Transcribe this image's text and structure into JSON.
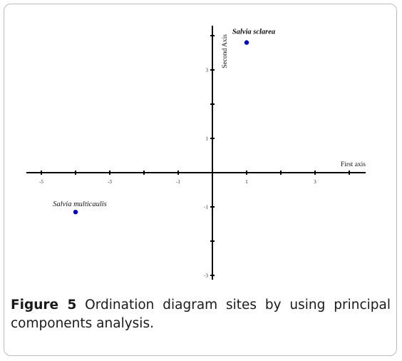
{
  "chart_data": {
    "type": "scatter",
    "title": "",
    "xlabel": "First axis",
    "ylabel": "Second Axis",
    "xlim": [
      -5.5,
      4.5
    ],
    "ylim": [
      -3,
      4.2
    ],
    "x_ticks": [
      -5,
      -4,
      -3,
      -2,
      -1,
      0,
      1,
      2,
      3,
      4
    ],
    "x_tick_labels": [
      {
        "value": -5,
        "label": "-5"
      },
      {
        "value": -3,
        "label": "-3"
      },
      {
        "value": -1,
        "label": "-1"
      },
      {
        "value": 1,
        "label": "1"
      },
      {
        "value": 3,
        "label": "3"
      }
    ],
    "y_ticks": [
      -3,
      -2,
      -1,
      1,
      2,
      3,
      4
    ],
    "y_tick_labels": [
      {
        "value": 3,
        "label": "3"
      },
      {
        "value": 1,
        "label": "1"
      },
      {
        "value": -1,
        "label": "-1"
      },
      {
        "value": -3,
        "label": "-3"
      }
    ],
    "grid": false,
    "points": [
      {
        "label": "Salvia sclarea",
        "x": 1.0,
        "y": 3.8
      },
      {
        "label": "Salvia multicaulis",
        "x": -4.0,
        "y": -1.15
      }
    ],
    "point_color": "#0000cc"
  },
  "caption": {
    "label": "Figure 5",
    "text": " Ordination diagram sites by using principal components analysis."
  }
}
